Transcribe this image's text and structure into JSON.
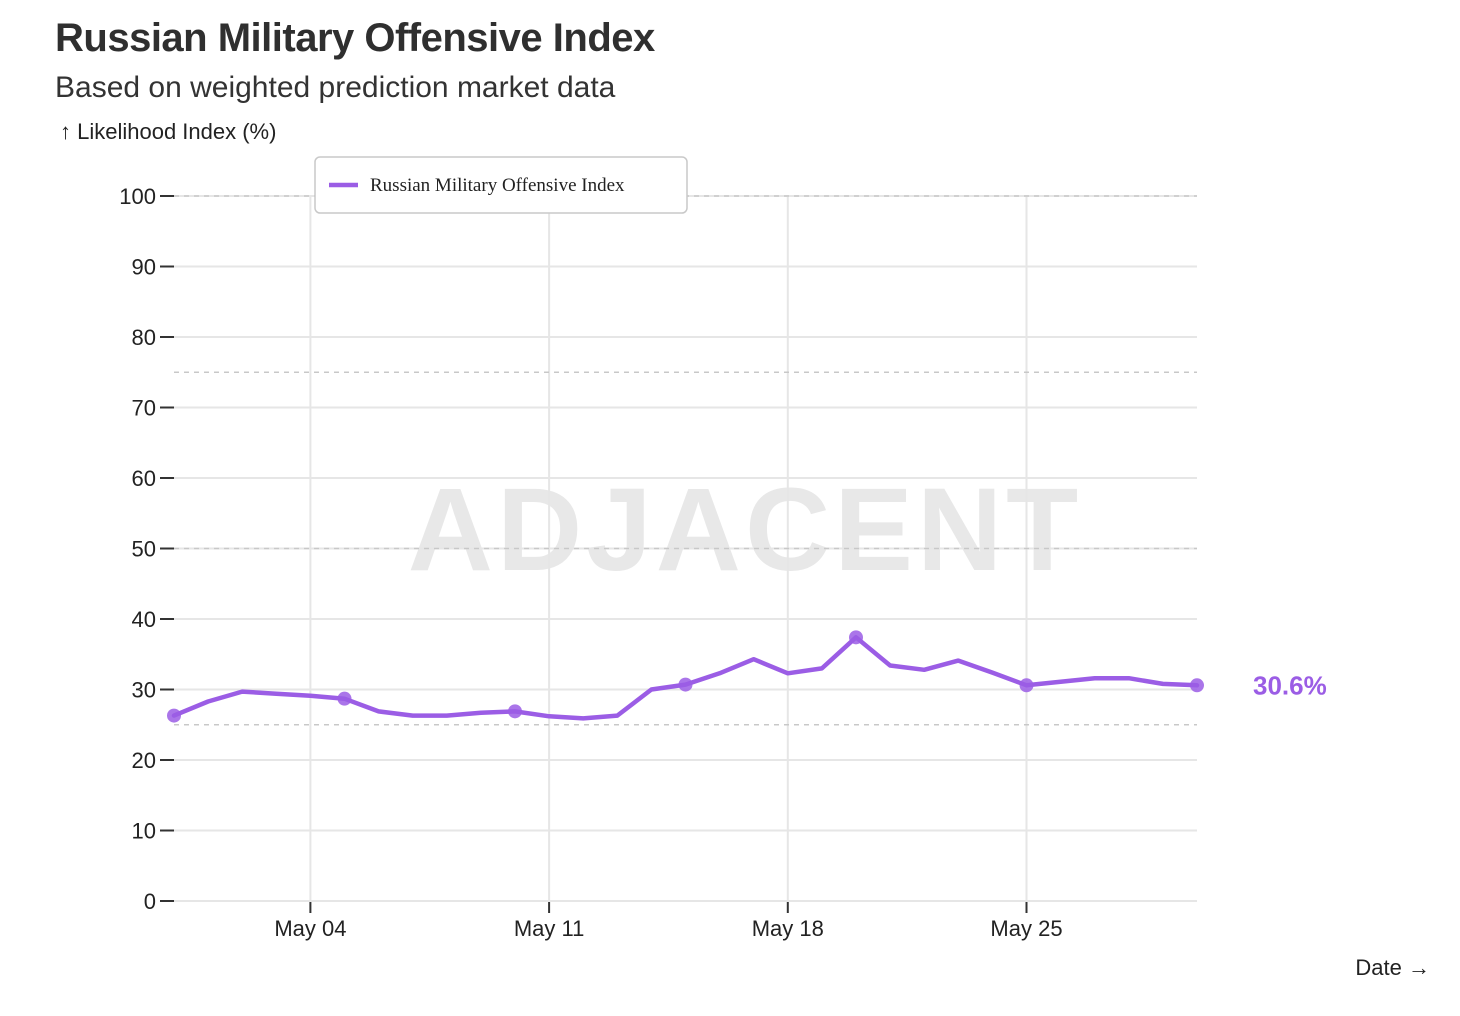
{
  "chart_data": {
    "type": "line",
    "title": "Russian Military Offensive Index",
    "subtitle": "Based on weighted prediction market data",
    "ylabel": "↑ Likelihood Index (%)",
    "xlabel": "Date →",
    "ylim": [
      0,
      100
    ],
    "yticks": [
      0,
      10,
      20,
      30,
      40,
      50,
      60,
      70,
      80,
      90,
      100
    ],
    "xticks": [
      {
        "label": "May 04",
        "date": "2025-05-04"
      },
      {
        "label": "May 11",
        "date": "2025-05-11"
      },
      {
        "label": "May 18",
        "date": "2025-05-18"
      },
      {
        "label": "May 25",
        "date": "2025-05-25"
      }
    ],
    "xlim": [
      "2025-04-30",
      "2025-05-30"
    ],
    "grid": true,
    "reference_lines": [
      25,
      50,
      75,
      100
    ],
    "legend": {
      "position": "top-left",
      "entries": [
        "Russian Military Offensive Index"
      ]
    },
    "watermark": "ADJACENT",
    "end_label": "30.6%",
    "colors": {
      "series": "#9b5de5",
      "grid": "#e6e6e6",
      "reference": "#c8c8c8",
      "axis": "#333333",
      "watermark": "#e8e8e8"
    },
    "series": [
      {
        "name": "Russian Military Offensive Index",
        "x": [
          "2025-04-30",
          "2025-05-01",
          "2025-05-02",
          "2025-05-03",
          "2025-05-04",
          "2025-05-05",
          "2025-05-06",
          "2025-05-07",
          "2025-05-08",
          "2025-05-09",
          "2025-05-10",
          "2025-05-11",
          "2025-05-12",
          "2025-05-13",
          "2025-05-14",
          "2025-05-15",
          "2025-05-16",
          "2025-05-17",
          "2025-05-18",
          "2025-05-19",
          "2025-05-20",
          "2025-05-21",
          "2025-05-22",
          "2025-05-23",
          "2025-05-24",
          "2025-05-25",
          "2025-05-26",
          "2025-05-27",
          "2025-05-28",
          "2025-05-29",
          "2025-05-30"
        ],
        "values": [
          26.3,
          28.3,
          29.7,
          29.4,
          29.1,
          28.7,
          26.9,
          26.3,
          26.3,
          26.7,
          26.9,
          26.2,
          25.9,
          26.3,
          30.0,
          30.7,
          32.3,
          34.3,
          32.3,
          33.0,
          37.4,
          33.4,
          32.8,
          34.1,
          32.4,
          30.6,
          31.1,
          31.6,
          31.6,
          30.8,
          30.6
        ],
        "markers": [
          "2025-04-30",
          "2025-05-05",
          "2025-05-10",
          "2025-05-15",
          "2025-05-20",
          "2025-05-25",
          "2025-05-30"
        ]
      }
    ]
  }
}
